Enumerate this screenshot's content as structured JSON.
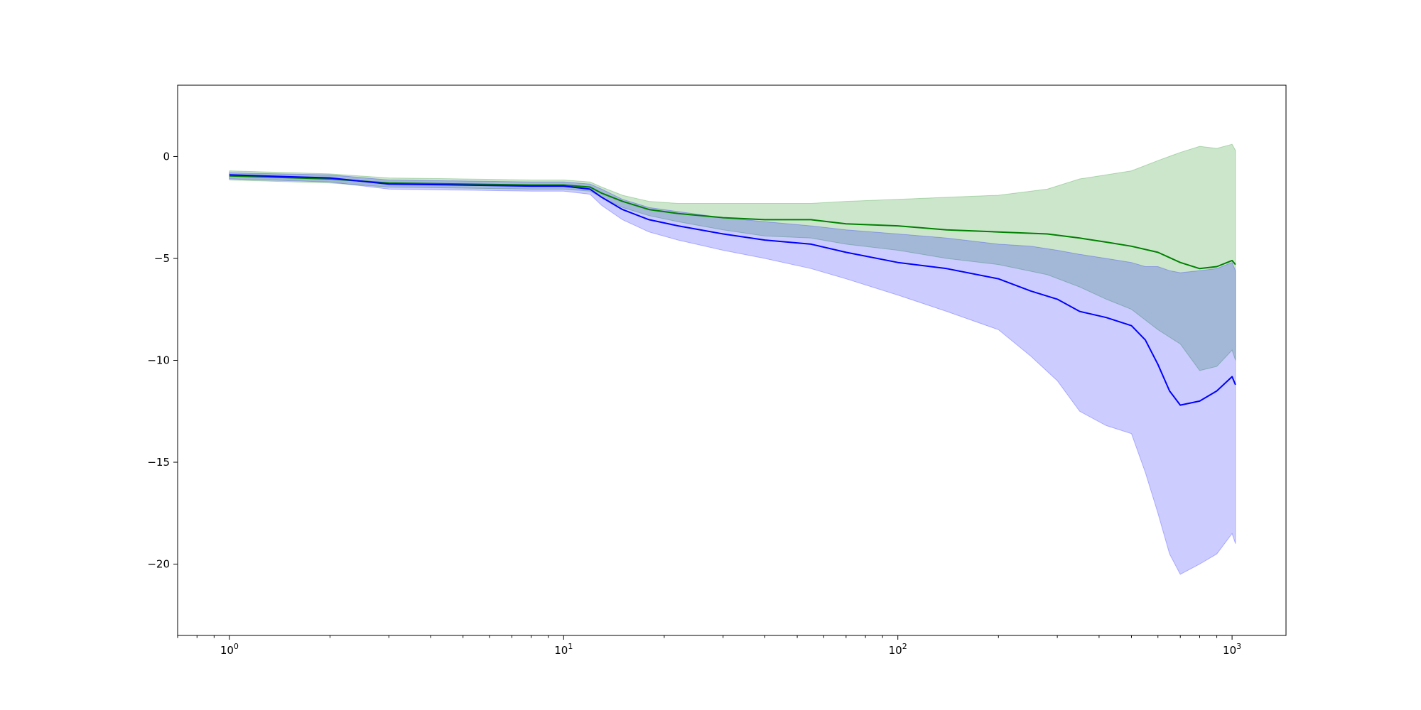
{
  "chart_data": {
    "type": "line",
    "title": "",
    "xlabel": "",
    "ylabel": "",
    "x_scale": "log",
    "xlim": [
      0.7,
      1450
    ],
    "ylim": [
      -23.5,
      3.5
    ],
    "grid": false,
    "legend": "none",
    "x_ticks": [
      {
        "value": 1,
        "base": "10",
        "exp": "0"
      },
      {
        "value": 10,
        "base": "10",
        "exp": "1"
      },
      {
        "value": 100,
        "base": "10",
        "exp": "2"
      },
      {
        "value": 1000,
        "base": "10",
        "exp": "3"
      }
    ],
    "y_ticks": [
      {
        "value": 0,
        "label": "0"
      },
      {
        "value": -5,
        "label": "−5"
      },
      {
        "value": -10,
        "label": "−10"
      },
      {
        "value": -15,
        "label": "−15"
      },
      {
        "value": -20,
        "label": "−20"
      }
    ],
    "series": [
      {
        "color": "#008000",
        "band_color": "#008000",
        "x": [
          1,
          2,
          3,
          5,
          8,
          10,
          12,
          13,
          15,
          18,
          22,
          30,
          40,
          55,
          70,
          100,
          140,
          200,
          280,
          350,
          420,
          500,
          600,
          700,
          800,
          900,
          1000,
          1024
        ],
        "y": [
          -0.95,
          -1.1,
          -1.3,
          -1.35,
          -1.4,
          -1.4,
          -1.5,
          -1.8,
          -2.2,
          -2.6,
          -2.8,
          -3.0,
          -3.1,
          -3.1,
          -3.3,
          -3.4,
          -3.6,
          -3.7,
          -3.8,
          -4.0,
          -4.2,
          -4.4,
          -4.7,
          -5.2,
          -5.5,
          -5.4,
          -5.1,
          -5.3
        ],
        "upper": [
          -0.7,
          -0.85,
          -1.05,
          -1.1,
          -1.15,
          -1.15,
          -1.25,
          -1.5,
          -1.9,
          -2.2,
          -2.3,
          -2.3,
          -2.3,
          -2.3,
          -2.2,
          -2.1,
          -2.0,
          -1.9,
          -1.6,
          -1.1,
          -0.9,
          -0.7,
          -0.2,
          0.2,
          0.5,
          0.4,
          0.6,
          0.3
        ],
        "lower": [
          -1.15,
          -1.3,
          -1.5,
          -1.55,
          -1.6,
          -1.6,
          -1.7,
          -2.0,
          -2.5,
          -2.9,
          -3.2,
          -3.6,
          -3.9,
          -4.0,
          -4.3,
          -4.6,
          -5.0,
          -5.3,
          -5.8,
          -6.4,
          -7.0,
          -7.5,
          -8.5,
          -9.2,
          -10.5,
          -10.3,
          -9.5,
          -10.0
        ]
      },
      {
        "color": "#0000ff",
        "band_color": "#0000ff",
        "x": [
          1,
          2,
          3,
          5,
          8,
          10,
          12,
          13,
          15,
          18,
          22,
          30,
          40,
          55,
          70,
          100,
          140,
          200,
          250,
          300,
          350,
          420,
          500,
          550,
          600,
          650,
          700,
          800,
          900,
          1000,
          1024
        ],
        "y": [
          -0.9,
          -1.05,
          -1.35,
          -1.4,
          -1.45,
          -1.45,
          -1.6,
          -2.0,
          -2.6,
          -3.1,
          -3.4,
          -3.8,
          -4.1,
          -4.3,
          -4.7,
          -5.2,
          -5.5,
          -6.0,
          -6.6,
          -7.0,
          -7.6,
          -7.9,
          -8.3,
          -9.0,
          -10.2,
          -11.5,
          -12.2,
          -12.0,
          -11.5,
          -10.8,
          -11.2
        ],
        "upper": [
          -0.8,
          -0.9,
          -1.15,
          -1.2,
          -1.25,
          -1.25,
          -1.35,
          -1.6,
          -2.1,
          -2.5,
          -2.7,
          -3.0,
          -3.2,
          -3.4,
          -3.6,
          -3.8,
          -4.0,
          -4.3,
          -4.4,
          -4.6,
          -4.8,
          -5.0,
          -5.2,
          -5.4,
          -5.4,
          -5.6,
          -5.7,
          -5.6,
          -5.5,
          -5.2,
          -5.6
        ],
        "lower": [
          -1.1,
          -1.25,
          -1.6,
          -1.65,
          -1.7,
          -1.7,
          -1.85,
          -2.4,
          -3.1,
          -3.7,
          -4.1,
          -4.6,
          -5.0,
          -5.5,
          -6.0,
          -6.8,
          -7.6,
          -8.5,
          -9.8,
          -11.0,
          -12.5,
          -13.2,
          -13.6,
          -15.5,
          -17.5,
          -19.5,
          -20.5,
          -20.0,
          -19.5,
          -18.5,
          -19.0
        ]
      }
    ]
  }
}
